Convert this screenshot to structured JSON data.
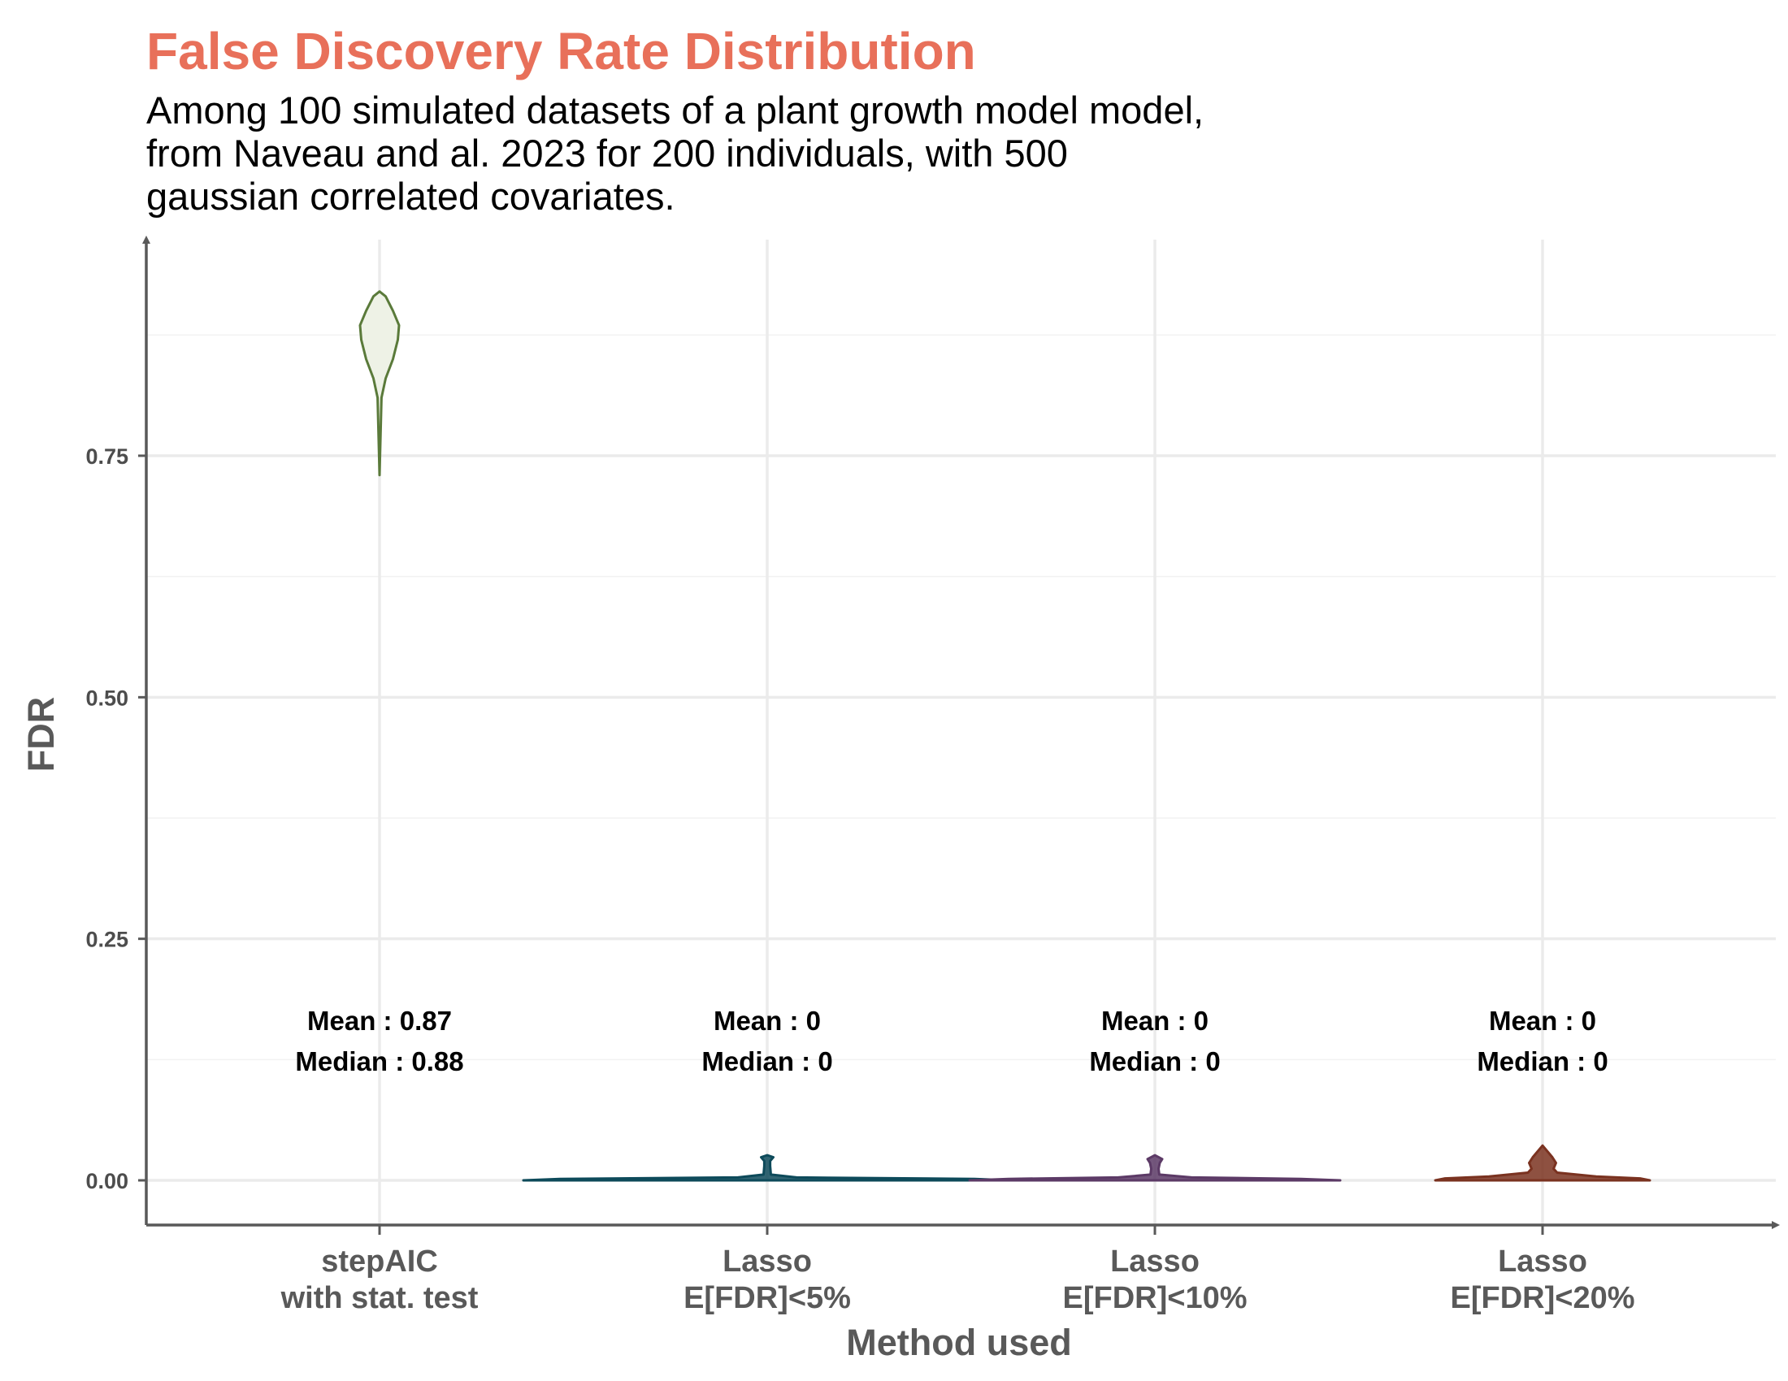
{
  "chart_data": {
    "type": "violin",
    "title": "False Discovery Rate Distribution",
    "subtitle": [
      "Among 100 simulated datasets of a plant growth model model,",
      "from Naveau and al. 2023 for 200 individuals, with 500",
      "gaussian correlated covariates."
    ],
    "xlabel": "Method used",
    "ylabel": "FDR",
    "ylim": [
      -0.1,
      0.97
    ],
    "yticks": [
      0.0,
      0.25,
      0.5,
      0.75
    ],
    "ytick_labels": [
      "0.00",
      "0.25",
      "0.50",
      "0.75"
    ],
    "grid": true,
    "categories": [
      {
        "lines": [
          "stepAIC",
          "with stat. test"
        ]
      },
      {
        "lines": [
          "Lasso",
          "E[FDR]<5%"
        ]
      },
      {
        "lines": [
          "Lasso",
          "E[FDR]<10%"
        ]
      },
      {
        "lines": [
          "Lasso",
          "E[FDR]<20%"
        ]
      }
    ],
    "groups": [
      {
        "color": "#5a7a3a",
        "fill": "#eef2e6",
        "mean_text": "Mean : 0.87",
        "median_text": "Median : 0.88",
        "mean": 0.87,
        "median": 0.88,
        "profile": [
          [
            0.73,
            0.0
          ],
          [
            0.78,
            0.005
          ],
          [
            0.81,
            0.008
          ],
          [
            0.83,
            0.025
          ],
          [
            0.85,
            0.055
          ],
          [
            0.87,
            0.075
          ],
          [
            0.885,
            0.08
          ],
          [
            0.9,
            0.055
          ],
          [
            0.915,
            0.025
          ],
          [
            0.92,
            0.0
          ]
        ]
      },
      {
        "color": "#0d4a5a",
        "fill": "#0d4a5a",
        "mean_text": "Mean : 0",
        "median_text": "Median : 0",
        "mean": 0,
        "median": 0,
        "profile": [
          [
            0.0,
            1.0
          ],
          [
            0.0015,
            0.85
          ],
          [
            0.003,
            0.12
          ],
          [
            0.006,
            0.015
          ],
          [
            0.015,
            0.012
          ],
          [
            0.02,
            0.012
          ],
          [
            0.024,
            0.025
          ],
          [
            0.026,
            0.0
          ]
        ]
      },
      {
        "color": "#5c3a66",
        "fill": "#5c3a66",
        "mean_text": "Mean : 0",
        "median_text": "Median : 0",
        "mean": 0,
        "median": 0,
        "profile": [
          [
            0.0,
            0.76
          ],
          [
            0.0015,
            0.6
          ],
          [
            0.003,
            0.15
          ],
          [
            0.006,
            0.018
          ],
          [
            0.012,
            0.015
          ],
          [
            0.018,
            0.02
          ],
          [
            0.022,
            0.03
          ],
          [
            0.026,
            0.0
          ]
        ]
      },
      {
        "color": "#7a3220",
        "fill": "#7a3220",
        "mean_text": "Mean : 0",
        "median_text": "Median : 0",
        "mean": 0,
        "median": 0,
        "profile": [
          [
            0.0,
            0.44
          ],
          [
            0.002,
            0.4
          ],
          [
            0.004,
            0.22
          ],
          [
            0.008,
            0.06
          ],
          [
            0.012,
            0.045
          ],
          [
            0.018,
            0.055
          ],
          [
            0.024,
            0.04
          ],
          [
            0.03,
            0.02
          ],
          [
            0.036,
            0.0
          ]
        ]
      }
    ],
    "colors": {
      "title": "#e8705a",
      "grid": "#ebebeb",
      "axis": "#595959"
    }
  }
}
